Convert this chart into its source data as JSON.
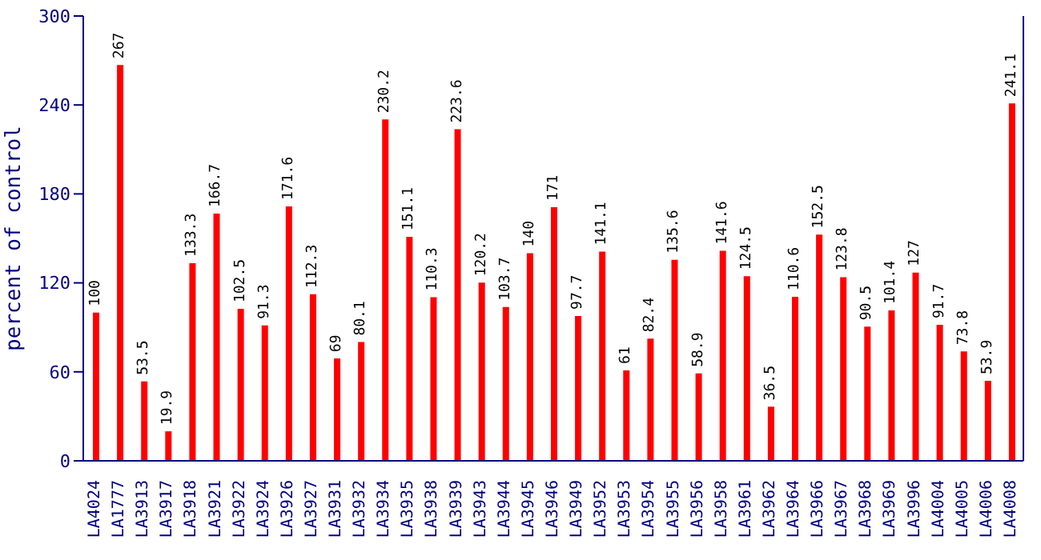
{
  "chart_data": {
    "type": "bar",
    "ylabel": "percent of control",
    "categories": [
      "LA4024",
      "LA1777",
      "LA3913",
      "LA3917",
      "LA3918",
      "LA3921",
      "LA3922",
      "LA3924",
      "LA3926",
      "LA3927",
      "LA3931",
      "LA3932",
      "LA3934",
      "LA3935",
      "LA3938",
      "LA3939",
      "LA3943",
      "LA3944",
      "LA3945",
      "LA3946",
      "LA3949",
      "LA3952",
      "LA3953",
      "LA3954",
      "LA3955",
      "LA3956",
      "LA3958",
      "LA3961",
      "LA3962",
      "LA3964",
      "LA3966",
      "LA3967",
      "LA3968",
      "LA3969",
      "LA3996",
      "LA4004",
      "LA4005",
      "LA4006",
      "LA4008"
    ],
    "values": [
      100,
      267,
      53.5,
      19.9,
      133.3,
      166.7,
      102.5,
      91.3,
      171.6,
      112.3,
      69,
      80.1,
      230.2,
      151.1,
      110.3,
      223.6,
      120.2,
      103.7,
      140,
      171,
      97.7,
      141.1,
      61,
      82.4,
      135.6,
      58.9,
      141.6,
      124.5,
      36.5,
      110.6,
      152.5,
      123.8,
      90.5,
      101.4,
      127,
      91.7,
      73.8,
      53.9,
      241.1
    ],
    "color": "#ff0000",
    "ylim": [
      0,
      300
    ],
    "yticks": [
      0,
      60,
      120,
      180,
      240,
      300
    ],
    "data_labels": true,
    "grid": false,
    "legend": false
  }
}
